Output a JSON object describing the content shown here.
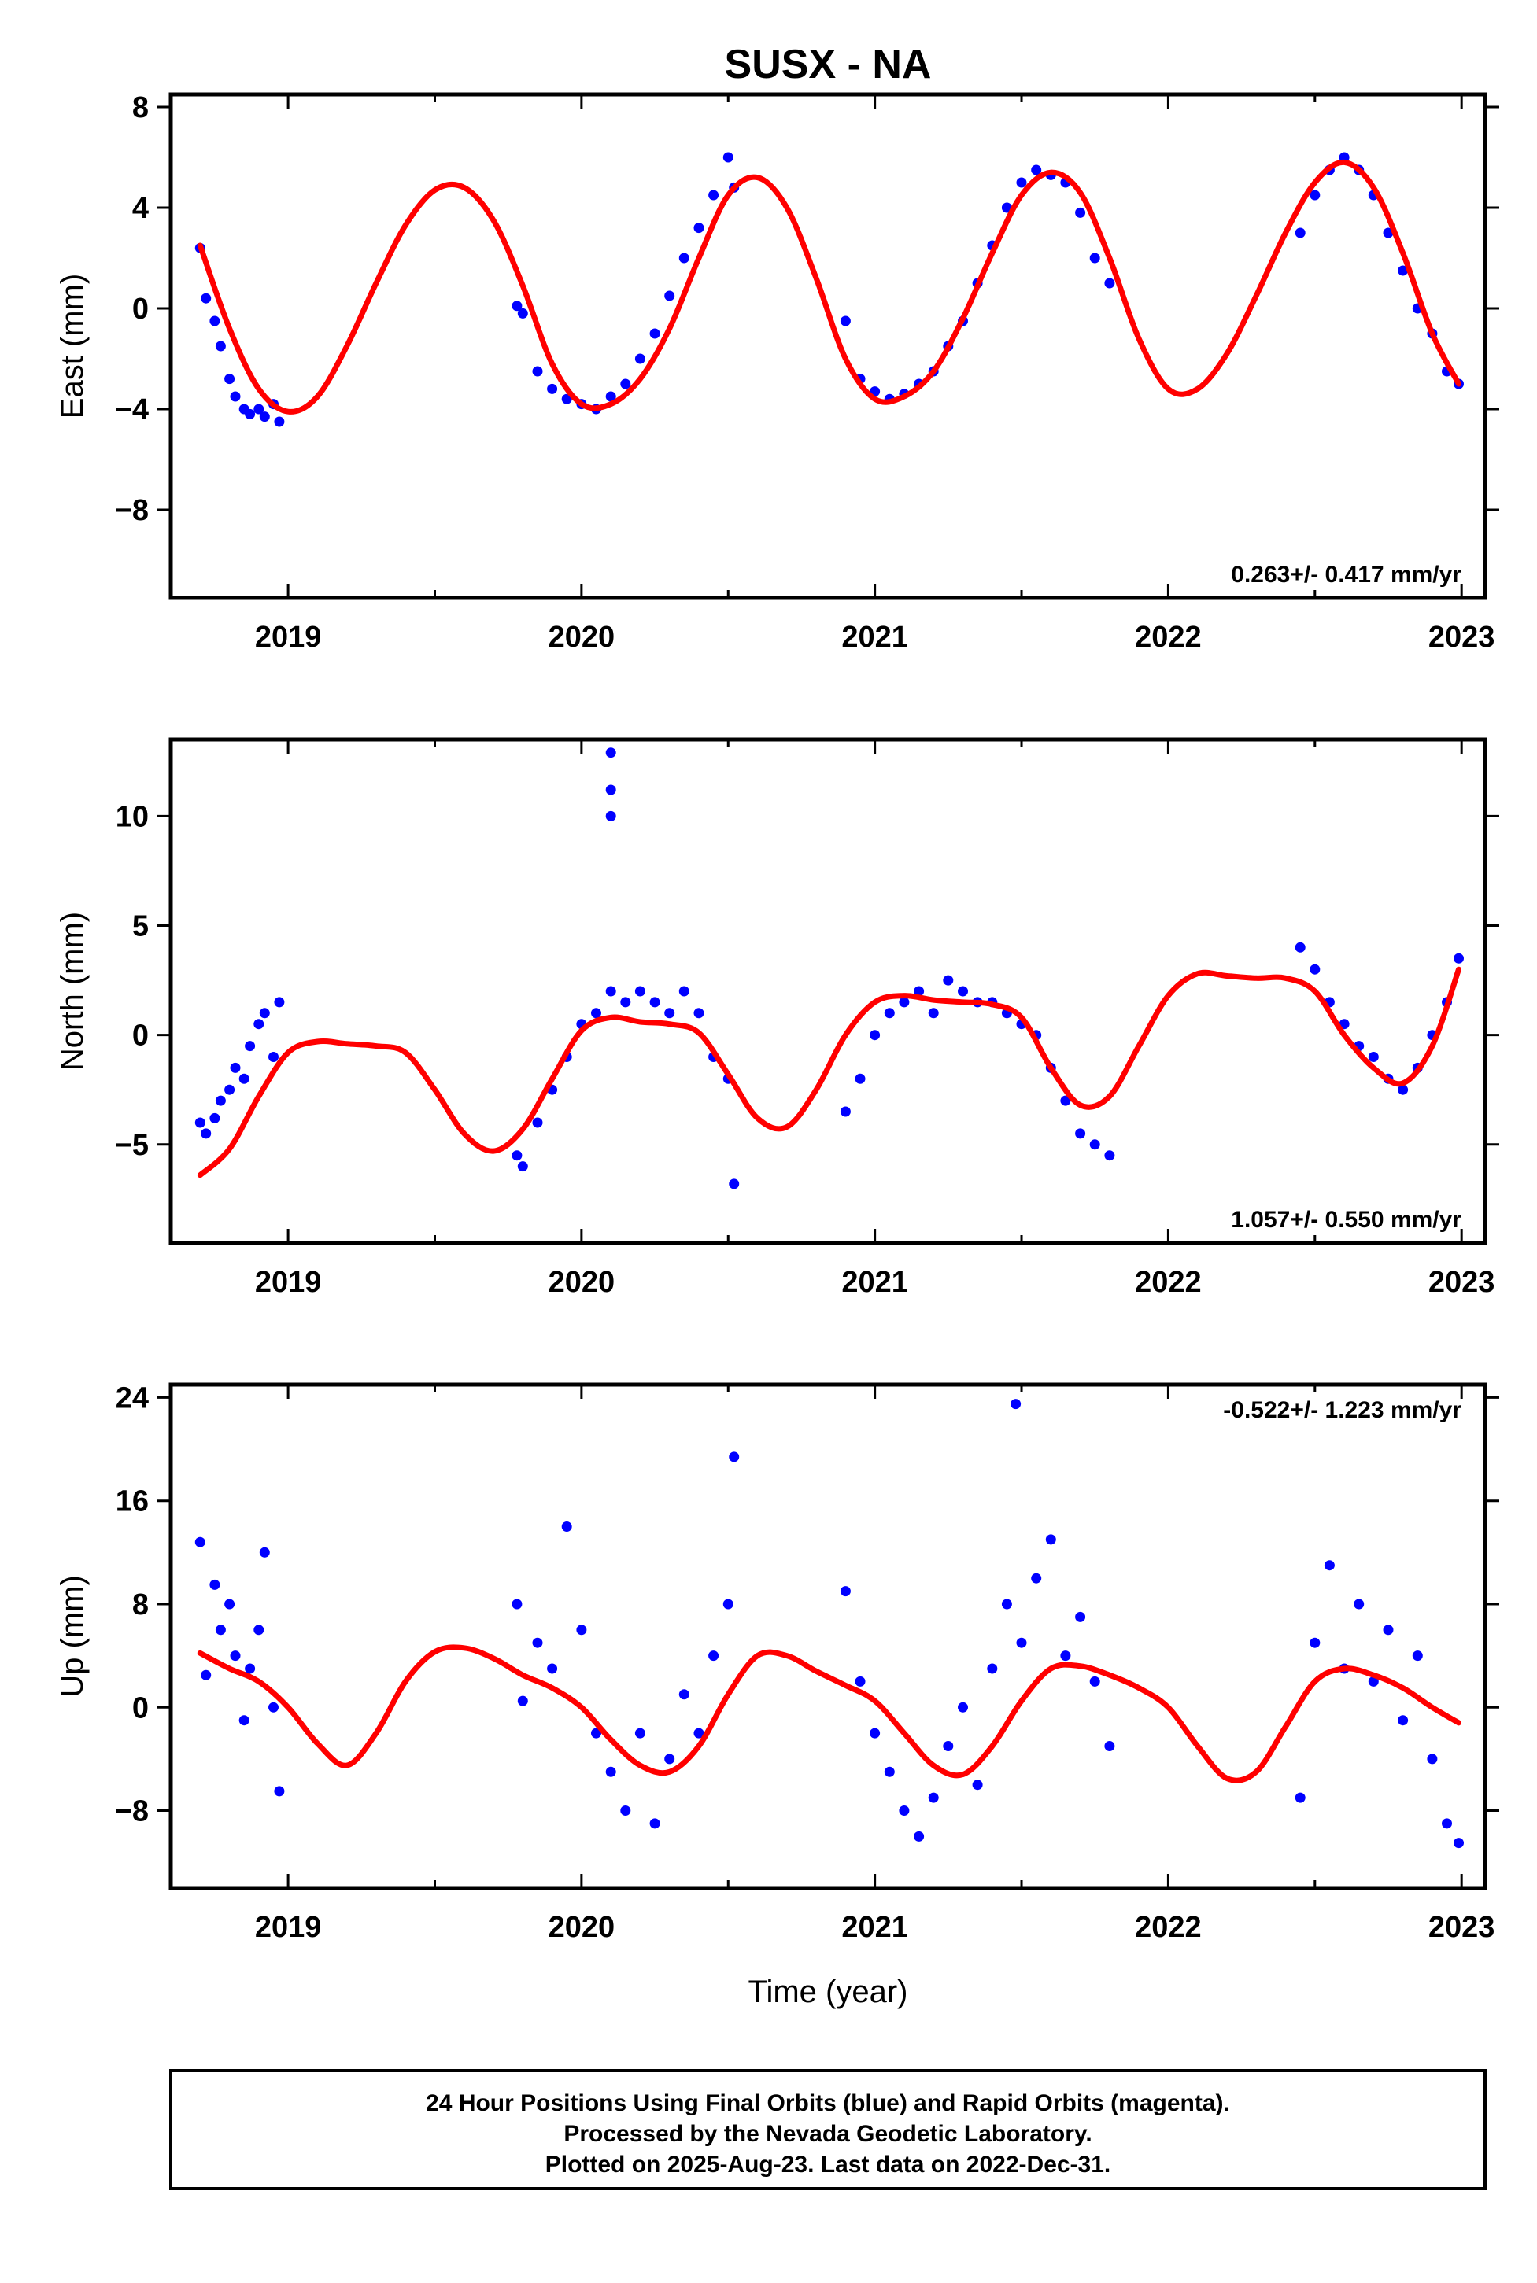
{
  "title": "SUSX - NA",
  "x_axis_label": "Time (year)",
  "footer": {
    "line1": "24 Hour Positions Using Final Orbits (blue) and Rapid Orbits (magenta).",
    "line2": "Processed by the Nevada Geodetic Laboratory.",
    "line3": "Plotted on 2025-Aug-23. Last data on 2022-Dec-31."
  },
  "colors": {
    "data": "#0000ff",
    "model": "#ff0000",
    "frame": "#000000"
  },
  "chart_data": [
    {
      "type": "scatter",
      "ylabel": "East (mm)",
      "rate_text": "0.263+/- 0.417 mm/yr",
      "xlim": [
        2018.6,
        2023.08
      ],
      "ylim": [
        -11.5,
        8.5
      ],
      "xticks": [
        2019,
        2020,
        2021,
        2022,
        2023
      ],
      "xtick_labels": [
        "2019",
        "2020",
        "2021",
        "2022",
        "2023"
      ],
      "yticks": [
        -8,
        -4,
        0,
        4,
        8
      ],
      "ytick_labels": [
        "−8",
        "−4",
        "0",
        "4",
        "8"
      ],
      "series": [
        {
          "kind": "points",
          "x": [
            2018.7,
            2018.72,
            2018.75,
            2018.77,
            2018.8,
            2018.82,
            2018.85,
            2018.87,
            2018.9,
            2018.92,
            2018.95,
            2018.97,
            2019.78,
            2019.8,
            2019.85,
            2019.9,
            2019.95,
            2020.0,
            2020.05,
            2020.1,
            2020.15,
            2020.2,
            2020.25,
            2020.3,
            2020.35,
            2020.4,
            2020.45,
            2020.5,
            2020.52,
            2020.9,
            2020.95,
            2021.0,
            2021.05,
            2021.1,
            2021.15,
            2021.2,
            2021.25,
            2021.3,
            2021.35,
            2021.4,
            2021.45,
            2021.5,
            2021.55,
            2021.6,
            2021.65,
            2021.7,
            2021.75,
            2021.8,
            2022.45,
            2022.5,
            2022.55,
            2022.6,
            2022.65,
            2022.7,
            2022.75,
            2022.8,
            2022.85,
            2022.9,
            2022.95,
            2022.99
          ],
          "y": [
            2.4,
            0.4,
            -0.5,
            -1.5,
            -2.8,
            -3.5,
            -4.0,
            -4.2,
            -4.0,
            -4.3,
            -3.8,
            -4.5,
            0.1,
            -0.2,
            -2.5,
            -3.2,
            -3.6,
            -3.8,
            -4.0,
            -3.5,
            -3.0,
            -2.0,
            -1.0,
            0.5,
            2.0,
            3.2,
            4.5,
            6.0,
            4.8,
            -0.5,
            -2.8,
            -3.3,
            -3.6,
            -3.4,
            -3.0,
            -2.5,
            -1.5,
            -0.5,
            1.0,
            2.5,
            4.0,
            5.0,
            5.5,
            5.3,
            5.0,
            3.8,
            2.0,
            1.0,
            3.0,
            4.5,
            5.5,
            6.0,
            5.5,
            4.5,
            3.0,
            1.5,
            0.0,
            -1.0,
            -2.5,
            -3.0
          ]
        },
        {
          "kind": "model",
          "x": [
            2018.7,
            2018.8,
            2018.9,
            2019.0,
            2019.1,
            2019.2,
            2019.3,
            2019.4,
            2019.5,
            2019.6,
            2019.7,
            2019.8,
            2019.9,
            2020.0,
            2020.1,
            2020.2,
            2020.3,
            2020.4,
            2020.5,
            2020.6,
            2020.7,
            2020.8,
            2020.9,
            2021.0,
            2021.1,
            2021.2,
            2021.3,
            2021.4,
            2021.5,
            2021.6,
            2021.7,
            2021.8,
            2021.9,
            2022.0,
            2022.1,
            2022.2,
            2022.3,
            2022.4,
            2022.5,
            2022.6,
            2022.7,
            2022.8,
            2022.9,
            2022.99
          ],
          "y": [
            2.5,
            -0.8,
            -3.2,
            -4.1,
            -3.5,
            -1.5,
            1.0,
            3.3,
            4.7,
            4.8,
            3.5,
            0.9,
            -2.2,
            -3.8,
            -3.8,
            -2.8,
            -0.8,
            2.0,
            4.5,
            5.2,
            4.0,
            1.2,
            -2.0,
            -3.6,
            -3.5,
            -2.5,
            -0.4,
            2.2,
            4.5,
            5.4,
            4.6,
            2.0,
            -1.2,
            -3.2,
            -3.2,
            -1.8,
            0.5,
            3.0,
            5.0,
            5.8,
            4.8,
            2.2,
            -1.0,
            -3.0
          ]
        }
      ]
    },
    {
      "type": "scatter",
      "ylabel": "North (mm)",
      "rate_text": "1.057+/- 0.550 mm/yr",
      "xlim": [
        2018.6,
        2023.08
      ],
      "ylim": [
        -9.5,
        13.5
      ],
      "xticks": [
        2019,
        2020,
        2021,
        2022,
        2023
      ],
      "xtick_labels": [
        "2019",
        "2020",
        "2021",
        "2022",
        "2023"
      ],
      "yticks": [
        -5,
        0,
        5,
        10
      ],
      "ytick_labels": [
        "−5",
        "0",
        "5",
        "10"
      ],
      "series": [
        {
          "kind": "points",
          "x": [
            2018.7,
            2018.72,
            2018.75,
            2018.77,
            2018.8,
            2018.82,
            2018.85,
            2018.87,
            2018.9,
            2018.92,
            2018.95,
            2018.97,
            2019.78,
            2019.8,
            2019.85,
            2019.9,
            2019.95,
            2020.0,
            2020.05,
            2020.1,
            2020.1,
            2020.1,
            2020.1,
            2020.15,
            2020.2,
            2020.25,
            2020.3,
            2020.35,
            2020.4,
            2020.45,
            2020.5,
            2020.52,
            2020.9,
            2020.95,
            2021.0,
            2021.05,
            2021.1,
            2021.15,
            2021.2,
            2021.25,
            2021.3,
            2021.35,
            2021.4,
            2021.45,
            2021.5,
            2021.55,
            2021.6,
            2021.65,
            2021.7,
            2021.75,
            2021.8,
            2022.45,
            2022.5,
            2022.55,
            2022.6,
            2022.65,
            2022.7,
            2022.75,
            2022.8,
            2022.85,
            2022.9,
            2022.95,
            2022.99
          ],
          "y": [
            -4.0,
            -4.5,
            -3.8,
            -3.0,
            -2.5,
            -1.5,
            -2.0,
            -0.5,
            0.5,
            1.0,
            -1.0,
            1.5,
            -5.5,
            -6.0,
            -4.0,
            -2.5,
            -1.0,
            0.5,
            1.0,
            2.0,
            10.0,
            11.2,
            12.9,
            1.5,
            2.0,
            1.5,
            1.0,
            2.0,
            1.0,
            -1.0,
            -2.0,
            -6.8,
            -3.5,
            -2.0,
            0.0,
            1.0,
            1.5,
            2.0,
            1.0,
            2.5,
            2.0,
            1.5,
            1.5,
            1.0,
            0.5,
            0.0,
            -1.5,
            -3.0,
            -4.5,
            -5.0,
            -5.5,
            4.0,
            3.0,
            1.5,
            0.5,
            -0.5,
            -1.0,
            -2.0,
            -2.5,
            -1.5,
            0.0,
            1.5,
            3.5
          ]
        },
        {
          "kind": "model",
          "x": [
            2018.7,
            2018.8,
            2018.9,
            2019.0,
            2019.1,
            2019.2,
            2019.3,
            2019.4,
            2019.5,
            2019.6,
            2019.7,
            2019.8,
            2019.9,
            2020.0,
            2020.1,
            2020.2,
            2020.3,
            2020.4,
            2020.5,
            2020.6,
            2020.7,
            2020.8,
            2020.9,
            2021.0,
            2021.1,
            2021.2,
            2021.3,
            2021.4,
            2021.5,
            2021.6,
            2021.7,
            2021.8,
            2021.9,
            2022.0,
            2022.1,
            2022.2,
            2022.3,
            2022.4,
            2022.5,
            2022.6,
            2022.7,
            2022.8,
            2022.9,
            2022.99
          ],
          "y": [
            -6.4,
            -5.2,
            -2.8,
            -0.8,
            -0.3,
            -0.4,
            -0.5,
            -0.8,
            -2.5,
            -4.5,
            -5.3,
            -4.3,
            -2.0,
            0.2,
            0.8,
            0.6,
            0.5,
            0.1,
            -1.8,
            -3.8,
            -4.2,
            -2.5,
            0.0,
            1.5,
            1.8,
            1.6,
            1.5,
            1.4,
            0.8,
            -1.5,
            -3.2,
            -2.8,
            -0.5,
            1.8,
            2.8,
            2.7,
            2.6,
            2.6,
            2.0,
            0.0,
            -1.5,
            -2.2,
            -0.5,
            3.0
          ]
        }
      ]
    },
    {
      "type": "scatter",
      "ylabel": "Up (mm)",
      "rate_text": "-0.522+/- 1.223 mm/yr",
      "xlim": [
        2018.6,
        2023.08
      ],
      "ylim": [
        -14,
        25
      ],
      "xticks": [
        2019,
        2020,
        2021,
        2022,
        2023
      ],
      "xtick_labels": [
        "2019",
        "2020",
        "2021",
        "2022",
        "2023"
      ],
      "yticks": [
        -8,
        0,
        8,
        16,
        24
      ],
      "ytick_labels": [
        "−8",
        "0",
        "8",
        "16",
        "24"
      ],
      "series": [
        {
          "kind": "points",
          "x": [
            2018.7,
            2018.72,
            2018.75,
            2018.77,
            2018.8,
            2018.82,
            2018.85,
            2018.87,
            2018.9,
            2018.92,
            2018.95,
            2018.97,
            2019.78,
            2019.8,
            2019.85,
            2019.9,
            2019.95,
            2020.0,
            2020.05,
            2020.1,
            2020.15,
            2020.2,
            2020.25,
            2020.3,
            2020.35,
            2020.4,
            2020.45,
            2020.5,
            2020.52,
            2020.9,
            2020.95,
            2021.0,
            2021.05,
            2021.1,
            2021.15,
            2021.2,
            2021.25,
            2021.3,
            2021.35,
            2021.4,
            2021.45,
            2021.48,
            2021.5,
            2021.55,
            2021.6,
            2021.65,
            2021.7,
            2021.75,
            2021.8,
            2022.45,
            2022.5,
            2022.55,
            2022.6,
            2022.65,
            2022.7,
            2022.75,
            2022.8,
            2022.85,
            2022.9,
            2022.95,
            2022.99
          ],
          "y": [
            12.8,
            2.5,
            9.5,
            6.0,
            8.0,
            4.0,
            -1.0,
            3.0,
            6.0,
            12.0,
            0.0,
            -6.5,
            8.0,
            0.5,
            5.0,
            3.0,
            14.0,
            6.0,
            -2.0,
            -5.0,
            -8.0,
            -2.0,
            -9.0,
            -4.0,
            1.0,
            -2.0,
            4.0,
            8.0,
            19.4,
            9.0,
            2.0,
            -2.0,
            -5.0,
            -8.0,
            -10.0,
            -7.0,
            -3.0,
            0.0,
            -6.0,
            3.0,
            8.0,
            23.5,
            5.0,
            10.0,
            13.0,
            4.0,
            7.0,
            2.0,
            -3.0,
            -7.0,
            5.0,
            11.0,
            3.0,
            8.0,
            2.0,
            6.0,
            -1.0,
            4.0,
            -4.0,
            -9.0,
            -10.5
          ]
        },
        {
          "kind": "model",
          "x": [
            2018.7,
            2018.8,
            2018.9,
            2019.0,
            2019.1,
            2019.2,
            2019.3,
            2019.4,
            2019.5,
            2019.6,
            2019.7,
            2019.8,
            2019.9,
            2020.0,
            2020.1,
            2020.2,
            2020.3,
            2020.4,
            2020.5,
            2020.6,
            2020.7,
            2020.8,
            2020.9,
            2021.0,
            2021.1,
            2021.2,
            2021.3,
            2021.4,
            2021.5,
            2021.6,
            2021.7,
            2021.8,
            2021.9,
            2022.0,
            2022.1,
            2022.2,
            2022.3,
            2022.4,
            2022.5,
            2022.6,
            2022.7,
            2022.8,
            2022.9,
            2022.99
          ],
          "y": [
            4.2,
            3.0,
            2.0,
            0.0,
            -2.8,
            -4.5,
            -2.0,
            2.0,
            4.3,
            4.6,
            3.8,
            2.5,
            1.5,
            0.0,
            -2.5,
            -4.5,
            -5.0,
            -3.0,
            1.0,
            4.0,
            4.0,
            2.8,
            1.7,
            0.5,
            -2.0,
            -4.5,
            -5.2,
            -3.0,
            0.5,
            3.0,
            3.2,
            2.5,
            1.5,
            0.0,
            -3.0,
            -5.5,
            -5.0,
            -1.5,
            2.0,
            3.0,
            2.5,
            1.5,
            0.0,
            -1.2
          ]
        }
      ]
    }
  ]
}
